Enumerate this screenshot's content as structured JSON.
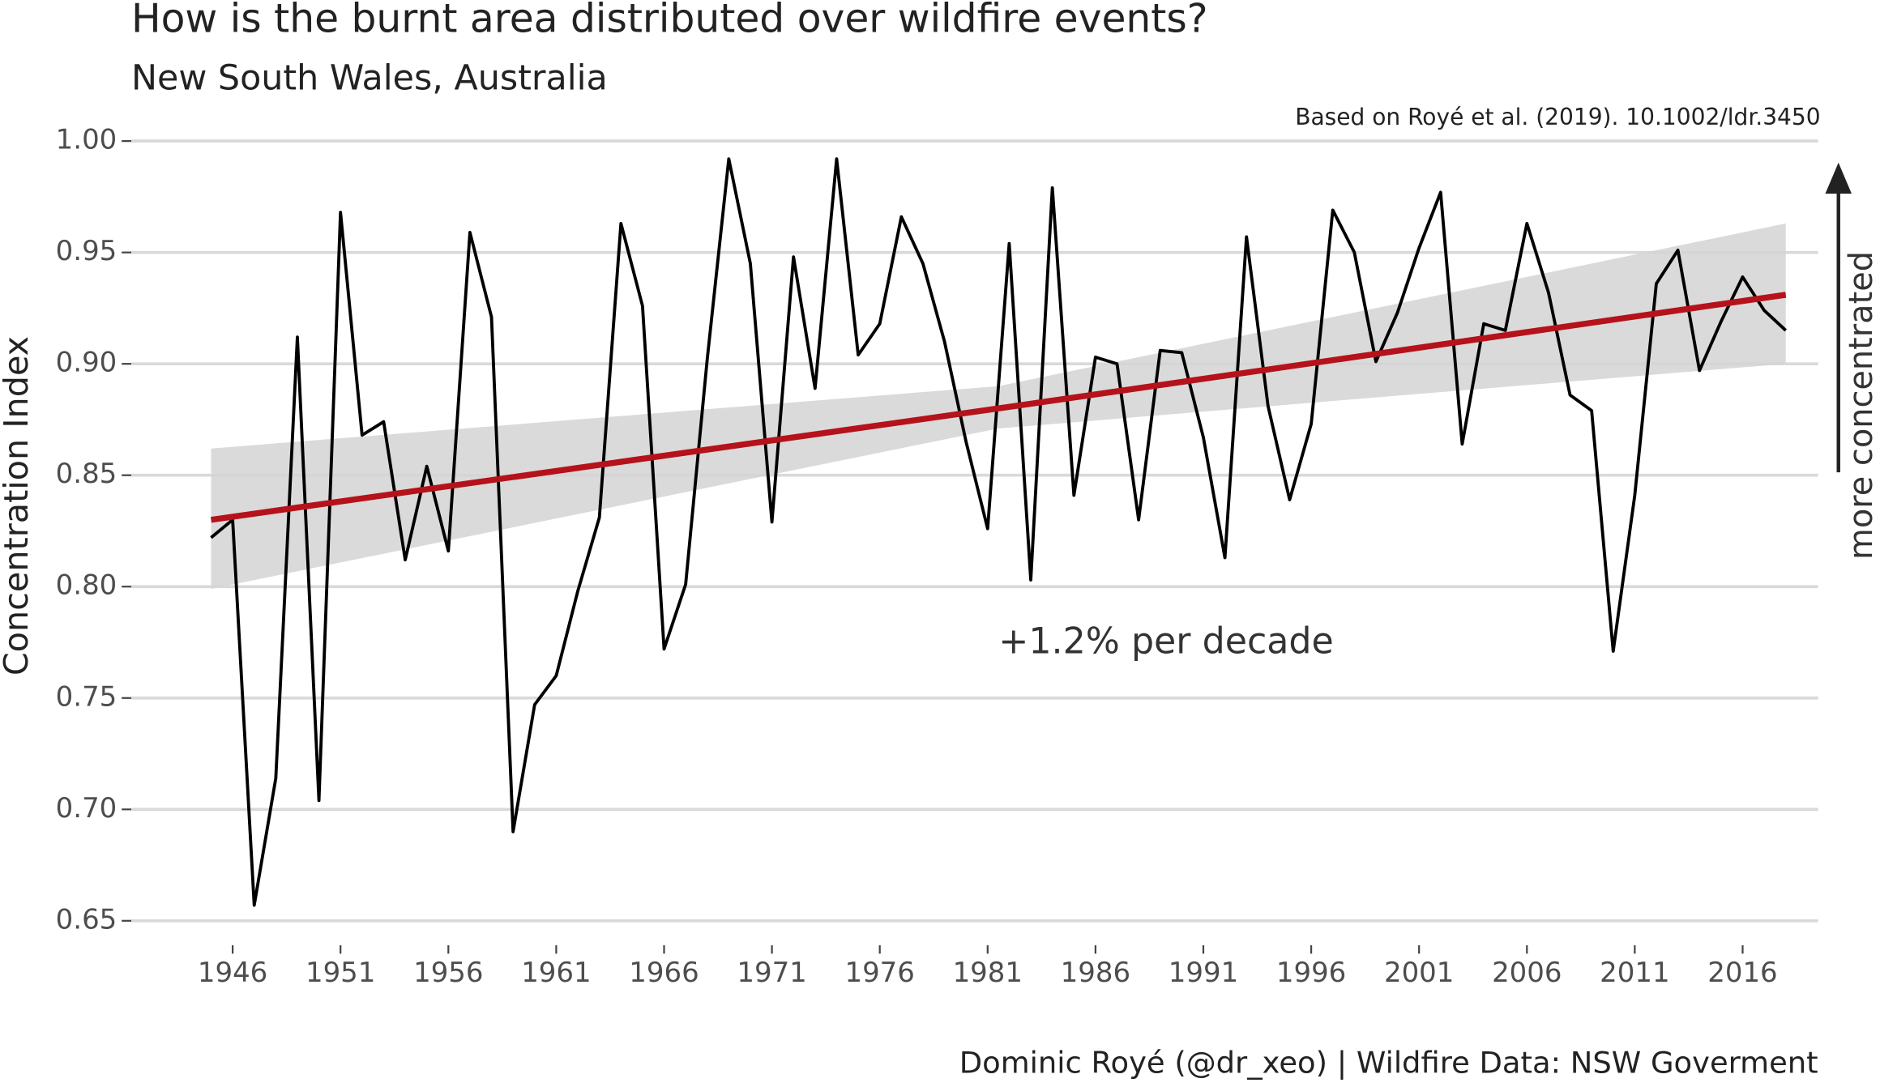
{
  "chart_data": {
    "type": "line",
    "title": "How is the burnt area distributed over wildfire events?",
    "subtitle": "New South Wales, Australia",
    "note": "Based on Royé et al. (2019). 10.1002/ldr.3450",
    "caption": "Dominic Royé (@dr_xeo) | Wildfire Data: NSW Goverment",
    "y_label": "Concentration Index",
    "annotation": "+1.2% per decade",
    "arrow_label": "more concentrated",
    "x": [
      1945,
      1946,
      1947,
      1948,
      1949,
      1950,
      1951,
      1952,
      1953,
      1954,
      1955,
      1956,
      1957,
      1958,
      1959,
      1960,
      1961,
      1962,
      1963,
      1964,
      1965,
      1966,
      1967,
      1968,
      1969,
      1970,
      1971,
      1972,
      1973,
      1974,
      1975,
      1976,
      1977,
      1978,
      1979,
      1980,
      1981,
      1982,
      1983,
      1984,
      1985,
      1986,
      1987,
      1988,
      1989,
      1990,
      1991,
      1992,
      1993,
      1994,
      1995,
      1996,
      1997,
      1998,
      1999,
      2000,
      2001,
      2002,
      2003,
      2004,
      2005,
      2006,
      2007,
      2008,
      2009,
      2010,
      2011,
      2012,
      2013,
      2014,
      2015,
      2016,
      2017,
      2018
    ],
    "series": [
      {
        "name": "Concentration Index",
        "color": "#000000",
        "values": [
          0.822,
          0.83,
          0.657,
          0.714,
          0.912,
          0.704,
          0.968,
          0.868,
          0.874,
          0.812,
          0.854,
          0.816,
          0.959,
          0.921,
          0.69,
          0.747,
          0.76,
          0.798,
          0.831,
          0.963,
          0.926,
          0.772,
          0.801,
          0.902,
          0.992,
          0.945,
          0.829,
          0.948,
          0.889,
          0.992,
          0.904,
          0.918,
          0.966,
          0.945,
          0.91,
          0.865,
          0.826,
          0.954,
          0.803,
          0.979,
          0.841,
          0.903,
          0.9,
          0.83,
          0.906,
          0.905,
          0.867,
          0.813,
          0.957,
          0.881,
          0.839,
          0.873,
          0.969,
          0.95,
          0.901,
          0.923,
          0.952,
          0.977,
          0.864,
          0.918,
          0.915,
          0.963,
          0.932,
          0.886,
          0.879,
          0.771,
          0.841,
          0.936,
          0.951,
          0.897,
          0.919,
          0.939,
          0.924,
          0.915
        ]
      }
    ],
    "trend": {
      "color": "#b5121b",
      "band_color": "#d3d3d3",
      "x": [
        1945,
        1981.5,
        2018
      ],
      "values": [
        0.83,
        0.88,
        0.931
      ],
      "lower": [
        0.799,
        0.871,
        0.9
      ],
      "upper": [
        0.862,
        0.89,
        0.963
      ]
    },
    "xlim": [
      1941.3,
      2019.5
    ],
    "ylim": [
      0.639,
      1.012
    ],
    "xticks": [
      1946,
      1951,
      1956,
      1961,
      1966,
      1971,
      1976,
      1981,
      1986,
      1991,
      1996,
      2001,
      2006,
      2011,
      2016
    ],
    "yticks": [
      0.65,
      {
        "value": 0.7,
        "label": "0.70"
      },
      0.75,
      {
        "value": 0.8,
        "label": "0.80"
      },
      0.85,
      {
        "value": 0.9,
        "label": "0.90"
      },
      0.95,
      {
        "value": 1,
        "label": "1.00"
      }
    ],
    "grid": true
  }
}
